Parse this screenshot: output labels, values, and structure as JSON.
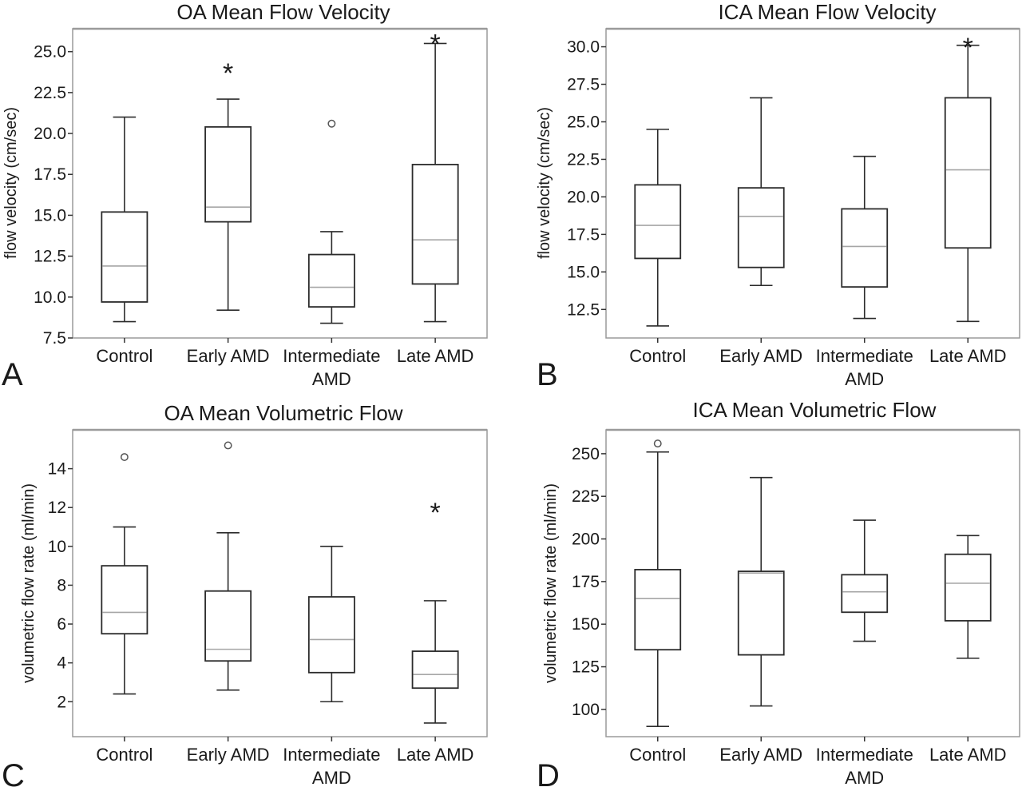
{
  "chart_data": [
    {
      "type": "box",
      "panel_label": "A",
      "title": "OA Mean Flow Velocity",
      "ylabel": "flow velocity (cm/sec)",
      "xlabel": "",
      "ylim": [
        7.5,
        26.4
      ],
      "yticks": [
        "7.5",
        "10.0",
        "12.5",
        "15.0",
        "17.5",
        "20.0",
        "22.5",
        "25.0"
      ],
      "categories": [
        {
          "lines": [
            "Control"
          ]
        },
        {
          "lines": [
            "Early AMD"
          ]
        },
        {
          "lines": [
            "Intermediate",
            "AMD"
          ]
        },
        {
          "lines": [
            "Late AMD"
          ]
        }
      ],
      "boxes": [
        {
          "whisker_low": 8.5,
          "q1": 9.7,
          "median": 11.9,
          "q3": 15.2,
          "whisker_high": 21.0,
          "outliers": [],
          "extremes": []
        },
        {
          "whisker_low": 9.2,
          "q1": 14.6,
          "median": 15.5,
          "q3": 20.4,
          "whisker_high": 22.1,
          "outliers": [],
          "extremes": [
            24.0
          ]
        },
        {
          "whisker_low": 8.4,
          "q1": 9.4,
          "median": 10.6,
          "q3": 12.6,
          "whisker_high": 14.0,
          "outliers": [
            20.6
          ],
          "extremes": []
        },
        {
          "whisker_low": 8.5,
          "q1": 10.8,
          "median": 13.5,
          "q3": 18.1,
          "whisker_high": 25.5,
          "outliers": [],
          "extremes": [
            25.8
          ]
        }
      ]
    },
    {
      "type": "box",
      "panel_label": "B",
      "title": "ICA Mean Flow Velocity",
      "ylabel": "flow velocity (cm/sec)",
      "xlabel": "",
      "ylim": [
        10.6,
        31.2
      ],
      "yticks": [
        "12.5",
        "15.0",
        "17.5",
        "20.0",
        "22.5",
        "25.0",
        "27.5",
        "30.0"
      ],
      "categories": [
        {
          "lines": [
            "Control"
          ]
        },
        {
          "lines": [
            "Early AMD"
          ]
        },
        {
          "lines": [
            "Intermediate",
            "AMD"
          ]
        },
        {
          "lines": [
            "Late AMD"
          ]
        }
      ],
      "boxes": [
        {
          "whisker_low": 11.4,
          "q1": 15.9,
          "median": 18.1,
          "q3": 20.8,
          "whisker_high": 24.5,
          "outliers": [],
          "extremes": []
        },
        {
          "whisker_low": 14.1,
          "q1": 15.3,
          "median": 18.7,
          "q3": 20.6,
          "whisker_high": 26.6,
          "outliers": [],
          "extremes": []
        },
        {
          "whisker_low": 11.9,
          "q1": 14.0,
          "median": 16.7,
          "q3": 19.2,
          "whisker_high": 22.7,
          "outliers": [],
          "extremes": []
        },
        {
          "whisker_low": 11.7,
          "q1": 16.6,
          "median": 21.8,
          "q3": 26.6,
          "whisker_high": 30.1,
          "outliers": [],
          "extremes": [
            30.3
          ]
        }
      ]
    },
    {
      "type": "box",
      "panel_label": "C",
      "title": "OA Mean Volumetric Flow",
      "ylabel": "volumetric flow rate (ml/min)",
      "xlabel": "",
      "ylim": [
        0.2,
        16.0
      ],
      "yticks": [
        "2",
        "4",
        "6",
        "8",
        "10",
        "12",
        "14"
      ],
      "categories": [
        {
          "lines": [
            "Control"
          ]
        },
        {
          "lines": [
            "Early AMD"
          ]
        },
        {
          "lines": [
            "Intermediate",
            "AMD"
          ]
        },
        {
          "lines": [
            "Late AMD"
          ]
        }
      ],
      "boxes": [
        {
          "whisker_low": 2.4,
          "q1": 5.5,
          "median": 6.6,
          "q3": 9.0,
          "whisker_high": 11.0,
          "outliers": [
            14.6
          ],
          "extremes": []
        },
        {
          "whisker_low": 2.6,
          "q1": 4.1,
          "median": 4.7,
          "q3": 7.7,
          "whisker_high": 10.7,
          "outliers": [
            15.2
          ],
          "extremes": []
        },
        {
          "whisker_low": 2.0,
          "q1": 3.5,
          "median": 5.2,
          "q3": 7.4,
          "whisker_high": 10.0,
          "outliers": [],
          "extremes": []
        },
        {
          "whisker_low": 0.9,
          "q1": 2.7,
          "median": 3.4,
          "q3": 4.6,
          "whisker_high": 7.2,
          "outliers": [],
          "extremes": [
            12.0
          ]
        }
      ]
    },
    {
      "type": "box",
      "panel_label": "D",
      "title": "ICA Mean Volumetric Flow",
      "ylabel": "volumetric flow rate (ml/min)",
      "xlabel": "",
      "ylim": [
        84,
        264
      ],
      "yticks": [
        "100",
        "125",
        "150",
        "175",
        "200",
        "225",
        "250"
      ],
      "categories": [
        {
          "lines": [
            "Control"
          ]
        },
        {
          "lines": [
            "Early AMD"
          ]
        },
        {
          "lines": [
            "Intermediate",
            "AMD"
          ]
        },
        {
          "lines": [
            "Late AMD"
          ]
        }
      ],
      "boxes": [
        {
          "whisker_low": 90,
          "q1": 135,
          "median": 165,
          "q3": 182,
          "whisker_high": 251,
          "outliers": [
            256
          ],
          "extremes": []
        },
        {
          "whisker_low": 102,
          "q1": 132,
          "median": 180,
          "q3": 181,
          "whisker_high": 236,
          "outliers": [],
          "extremes": []
        },
        {
          "whisker_low": 140,
          "q1": 157,
          "median": 169,
          "q3": 179,
          "whisker_high": 211,
          "outliers": [],
          "extremes": []
        },
        {
          "whisker_low": 130,
          "q1": 152,
          "median": 174,
          "q3": 191,
          "whisker_high": 202,
          "outliers": [],
          "extremes": []
        }
      ]
    }
  ],
  "colors": {
    "box_edge": "#2b2b2b",
    "median": "#a6a6a6",
    "frame": "#9a9a9a",
    "text": "#1a1a1a"
  },
  "extreme_marker_symbol": "*"
}
